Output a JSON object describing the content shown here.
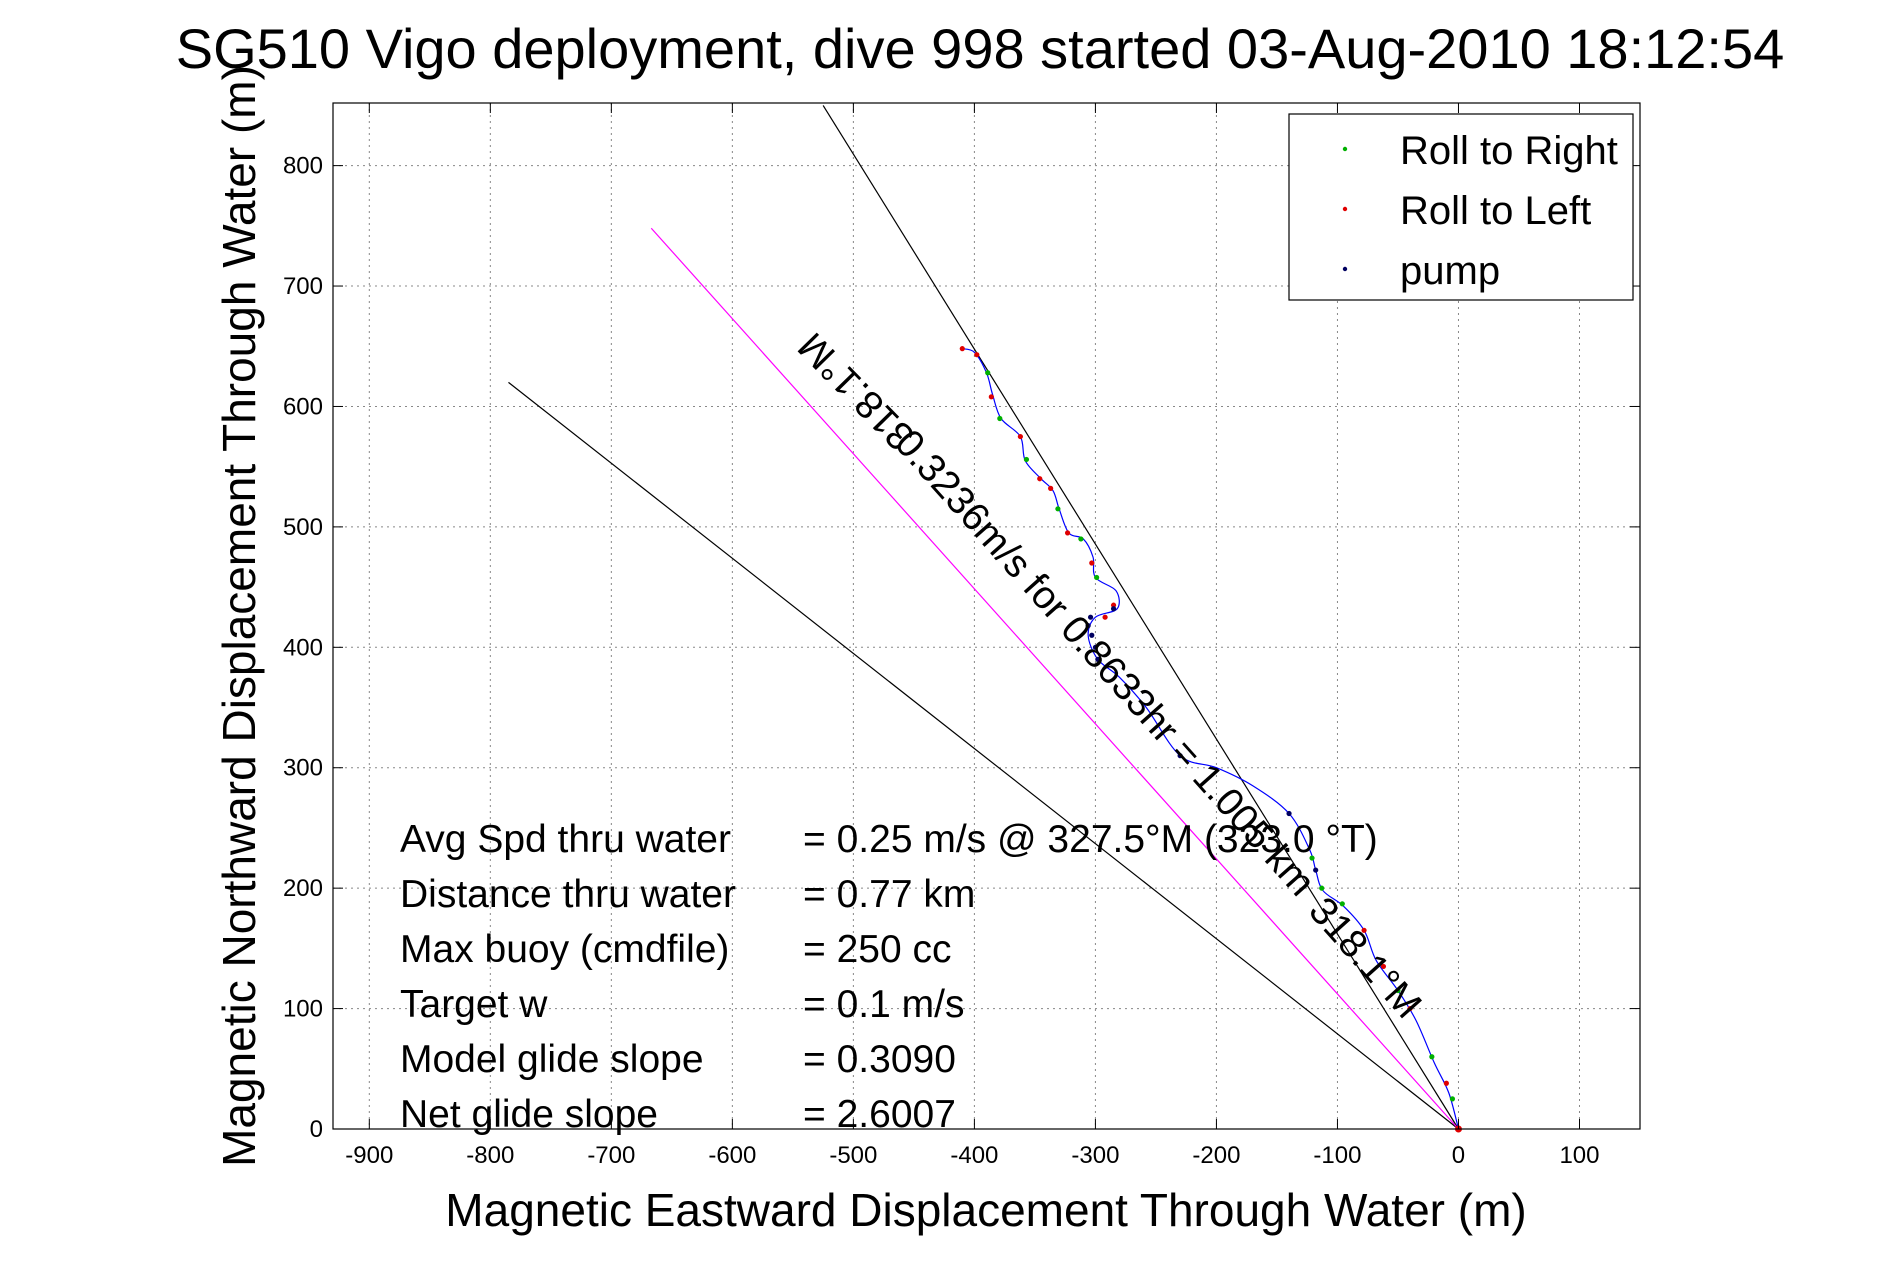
{
  "chart_data": {
    "type": "scatter",
    "title": "SG510 Vigo deployment, dive 998 started 03-Aug-2010 18:12:54",
    "xlabel": "Magnetic Eastward Displacement Through Water (m)",
    "ylabel": "Magnetic Northward Displacement Through Water (m)",
    "xlim": [
      -930,
      150
    ],
    "ylim": [
      0,
      852
    ],
    "xticks": [
      -900,
      -800,
      -700,
      -600,
      -500,
      -400,
      -300,
      -200,
      -100,
      0,
      100
    ],
    "yticks": [
      0,
      100,
      200,
      300,
      400,
      500,
      600,
      700,
      800
    ],
    "grid": true,
    "legend": {
      "placement": "top-right",
      "entries": [
        {
          "label": "Roll to Right",
          "color": "#00b000"
        },
        {
          "label": "Roll to Left",
          "color": "#e00000"
        },
        {
          "label": "pump",
          "color": "#000060"
        }
      ]
    },
    "reference_lines": [
      {
        "name": "upper-bearing-line",
        "color": "#000000",
        "points": [
          [
            0,
            0
          ],
          [
            -525,
            850
          ]
        ]
      },
      {
        "name": "lower-bearing-line",
        "color": "#000000",
        "points": [
          [
            0,
            0
          ],
          [
            -785,
            620
          ]
        ]
      },
      {
        "name": "heading-line",
        "color": "#ff00ff",
        "points": [
          [
            0,
            0
          ],
          [
            -667,
            748
          ]
        ]
      }
    ],
    "track": {
      "color": "#0000ff",
      "points": [
        [
          0,
          0
        ],
        [
          -8,
          30
        ],
        [
          -20,
          55
        ],
        [
          -35,
          90
        ],
        [
          -50,
          115
        ],
        [
          -68,
          140
        ],
        [
          -78,
          165
        ],
        [
          -95,
          185
        ],
        [
          -112,
          198
        ],
        [
          -118,
          215
        ],
        [
          -123,
          232
        ],
        [
          -140,
          262
        ],
        [
          -170,
          285
        ],
        [
          -200,
          300
        ],
        [
          -230,
          310
        ],
        [
          -258,
          350
        ],
        [
          -280,
          375
        ],
        [
          -298,
          390
        ],
        [
          -306,
          410
        ],
        [
          -300,
          425
        ],
        [
          -282,
          432
        ],
        [
          -283,
          447
        ],
        [
          -300,
          458
        ],
        [
          -302,
          475
        ],
        [
          -310,
          490
        ],
        [
          -322,
          495
        ],
        [
          -330,
          515
        ],
        [
          -335,
          530
        ],
        [
          -345,
          540
        ],
        [
          -358,
          555
        ],
        [
          -362,
          575
        ],
        [
          -378,
          590
        ],
        [
          -385,
          610
        ],
        [
          -390,
          628
        ],
        [
          -400,
          645
        ],
        [
          -410,
          648
        ]
      ]
    },
    "roll_right_points": [
      [
        -5,
        25
      ],
      [
        -22,
        60
      ],
      [
        -50,
        115
      ],
      [
        -96,
        187
      ],
      [
        -113,
        200
      ],
      [
        -121,
        225
      ],
      [
        -299,
        458
      ],
      [
        -312,
        490
      ],
      [
        -331,
        515
      ],
      [
        -357,
        556
      ],
      [
        -379,
        590
      ],
      [
        -389,
        628
      ]
    ],
    "roll_left_points": [
      [
        -10,
        38
      ],
      [
        -40,
        100
      ],
      [
        -62,
        135
      ],
      [
        -78,
        165
      ],
      [
        -285,
        435
      ],
      [
        -292,
        425
      ],
      [
        -303,
        470
      ],
      [
        -323,
        495
      ],
      [
        -337,
        532
      ],
      [
        -346,
        540
      ],
      [
        -362,
        575
      ],
      [
        -386,
        608
      ],
      [
        -398,
        643
      ],
      [
        -410,
        648
      ]
    ],
    "pump_points": [
      [
        -118,
        215
      ],
      [
        -140,
        262
      ],
      [
        -230,
        310
      ],
      [
        -298,
        390
      ],
      [
        -300,
        400
      ],
      [
        -303,
        410
      ],
      [
        -306,
        418
      ],
      [
        -304,
        425
      ],
      [
        -285,
        432
      ]
    ],
    "annotations": [
      {
        "name": "heading-annotation-top",
        "text": "318.1°M",
        "x": -490,
        "y": 620,
        "rotate": 225.6
      },
      {
        "name": "speed-annotation",
        "text": "0.3236m/s for 0.8633hr = 1.005 km",
        "x": -300,
        "y": 380,
        "rotate": 48.3
      },
      {
        "name": "heading-annotation-bottom",
        "text": "318.1°M",
        "x": -85,
        "y": 135,
        "rotate": 48.3
      }
    ],
    "stats": [
      {
        "label": "Avg Spd thru water",
        "value": "=  0.25 m/s @ 327.5°M (323.0 °T)"
      },
      {
        "label": "Distance thru water",
        "value": "=  0.77 km"
      },
      {
        "label": "Max buoy (cmdfile)",
        "value": "= 250 cc"
      },
      {
        "label": "Target w",
        "value": "= 0.1 m/s"
      },
      {
        "label": "Model glide slope",
        "value": "= 0.3090"
      },
      {
        "label": "Net glide slope",
        "value": "= 2.6007"
      }
    ]
  }
}
